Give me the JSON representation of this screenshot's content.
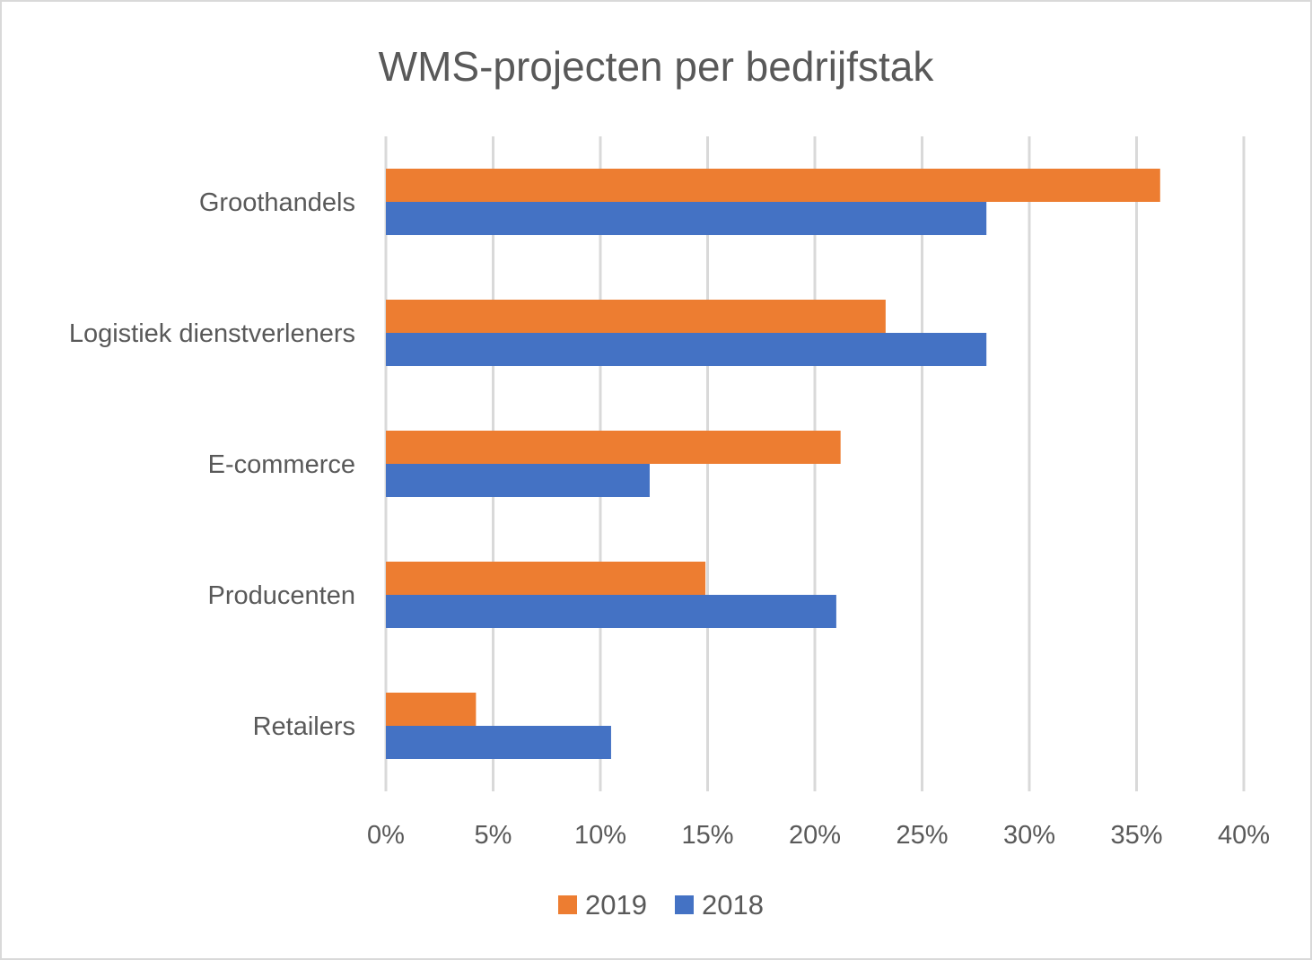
{
  "chart_data": {
    "type": "bar",
    "orientation": "horizontal",
    "title": "WMS-projecten per bedrijfstak",
    "categories": [
      "Groothandels",
      "Logistiek dienstverleners",
      "E-commerce",
      "Producenten",
      "Retailers"
    ],
    "series": [
      {
        "name": "2019",
        "color": "#ED7D31",
        "values": [
          36.1,
          23.3,
          21.2,
          14.9,
          4.2
        ]
      },
      {
        "name": "2018",
        "color": "#4472C4",
        "values": [
          28.0,
          28.0,
          12.3,
          21.0,
          10.5
        ]
      }
    ],
    "xlim": [
      0,
      40
    ],
    "xticks": [
      0,
      5,
      10,
      15,
      20,
      25,
      30,
      35,
      40
    ],
    "tick_labels": [
      "0%",
      "5%",
      "10%",
      "15%",
      "20%",
      "25%",
      "30%",
      "35%",
      "40%"
    ],
    "xlabel": "",
    "ylabel": "",
    "grid": true,
    "legend": {
      "position": "bottom",
      "entries": [
        "2019",
        "2018"
      ]
    }
  }
}
